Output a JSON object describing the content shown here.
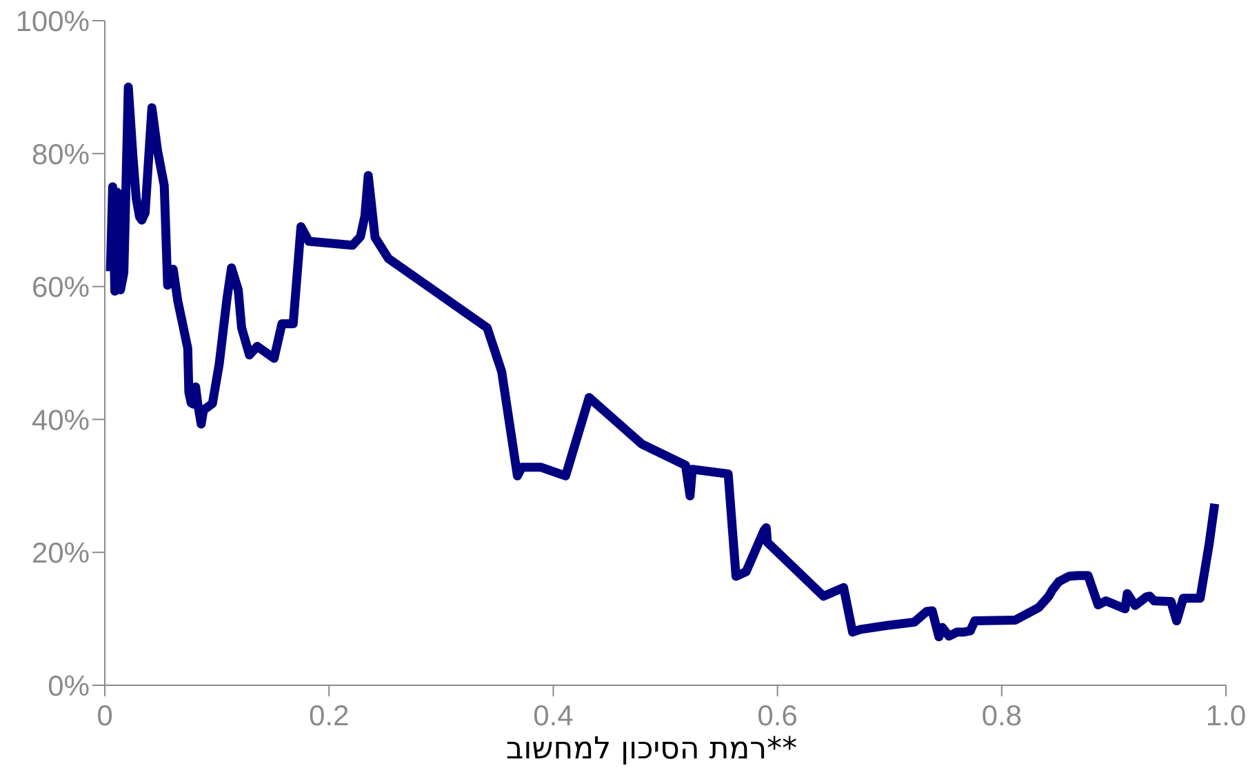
{
  "chart_data": {
    "type": "line",
    "xlabel": "רמת הסיכון למחשוב**",
    "ylabel": "",
    "xlim": [
      0,
      1.0
    ],
    "ylim": [
      0,
      1.0
    ],
    "x_ticks": [
      0,
      0.2,
      0.4,
      0.6,
      0.8,
      1.0
    ],
    "x_tick_labels": [
      "0",
      "0.2",
      "0.4",
      "0.6",
      "0.8",
      "1.0"
    ],
    "y_ticks": [
      0,
      0.2,
      0.4,
      0.6,
      0.8,
      1.0
    ],
    "y_tick_labels": [
      "0%",
      "20%",
      "40%",
      "60%",
      "80%",
      "100%"
    ],
    "grid": false,
    "legend": "none",
    "colors": {
      "series": "#000080",
      "axis": "#8a8a8a",
      "axis_title": "#000000"
    },
    "series": [
      {
        "x": [
          0.005,
          0.007,
          0.009,
          0.011,
          0.014,
          0.017,
          0.018,
          0.021,
          0.025,
          0.028,
          0.031,
          0.033,
          0.036,
          0.042,
          0.047,
          0.053,
          0.056,
          0.058,
          0.061,
          0.065,
          0.074,
          0.075,
          0.077,
          0.079,
          0.081,
          0.083,
          0.086,
          0.088,
          0.096,
          0.102,
          0.109,
          0.113,
          0.119,
          0.122,
          0.129,
          0.136,
          0.151,
          0.158,
          0.164,
          0.168,
          0.175,
          0.182,
          0.221,
          0.228,
          0.232,
          0.235,
          0.241,
          0.253,
          0.341,
          0.354,
          0.368,
          0.372,
          0.389,
          0.411,
          0.432,
          0.479,
          0.518,
          0.522,
          0.524,
          0.556,
          0.563,
          0.572,
          0.588,
          0.59,
          0.591,
          0.641,
          0.659,
          0.667,
          0.674,
          0.698,
          0.722,
          0.733,
          0.738,
          0.744,
          0.747,
          0.753,
          0.76,
          0.766,
          0.772,
          0.776,
          0.812,
          0.833,
          0.842,
          0.845,
          0.851,
          0.86,
          0.868,
          0.877,
          0.886,
          0.893,
          0.91,
          0.912,
          0.919,
          0.929,
          0.932,
          0.936,
          0.951,
          0.956,
          0.962,
          0.977,
          0.985,
          0.99
        ],
        "y": [
          0.623,
          0.75,
          0.593,
          0.742,
          0.595,
          0.621,
          0.69,
          0.9,
          0.797,
          0.733,
          0.705,
          0.7,
          0.711,
          0.869,
          0.805,
          0.752,
          0.602,
          0.623,
          0.626,
          0.579,
          0.507,
          0.441,
          0.425,
          0.423,
          0.449,
          0.422,
          0.393,
          0.414,
          0.424,
          0.483,
          0.582,
          0.628,
          0.595,
          0.538,
          0.497,
          0.51,
          0.492,
          0.544,
          0.544,
          0.544,
          0.69,
          0.668,
          0.662,
          0.675,
          0.706,
          0.767,
          0.674,
          0.642,
          0.538,
          0.472,
          0.315,
          0.328,
          0.328,
          0.315,
          0.433,
          0.363,
          0.331,
          0.285,
          0.325,
          0.318,
          0.164,
          0.171,
          0.233,
          0.237,
          0.215,
          0.134,
          0.147,
          0.08,
          0.084,
          0.09,
          0.095,
          0.111,
          0.112,
          0.073,
          0.087,
          0.074,
          0.08,
          0.08,
          0.082,
          0.097,
          0.098,
          0.117,
          0.134,
          0.143,
          0.156,
          0.164,
          0.165,
          0.165,
          0.121,
          0.127,
          0.115,
          0.138,
          0.12,
          0.133,
          0.134,
          0.127,
          0.126,
          0.097,
          0.131,
          0.131,
          0.212,
          0.273
        ]
      }
    ]
  }
}
